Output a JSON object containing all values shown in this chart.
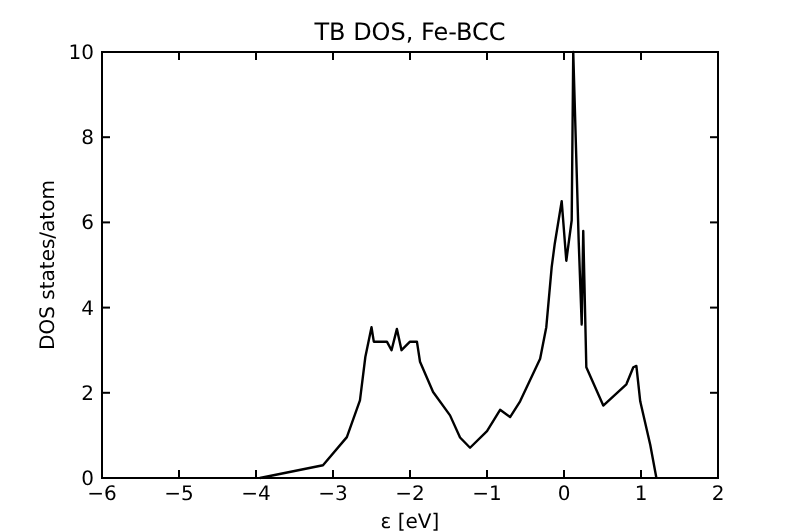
{
  "chart_data": {
    "type": "line",
    "title": "TB DOS, Fe-BCC",
    "xlabel": "ε [eV]",
    "ylabel": "DOS states/atom",
    "xlim": [
      -6,
      2
    ],
    "ylim": [
      0,
      10
    ],
    "xticks": [
      -6,
      -5,
      -4,
      -3,
      -2,
      -1,
      0,
      1,
      2
    ],
    "yticks": [
      0,
      2,
      4,
      6,
      8,
      10
    ],
    "grid": false,
    "series": [
      {
        "color": "#000000",
        "x": [
          -3.95,
          -3.13,
          -2.82,
          -2.65,
          -2.58,
          -2.5,
          -2.47,
          -2.3,
          -2.24,
          -2.17,
          -2.11,
          -2.0,
          -1.91,
          -1.87,
          -1.7,
          -1.48,
          -1.35,
          -1.22,
          -1.0,
          -0.83,
          -0.7,
          -0.57,
          -0.31,
          -0.23,
          -0.16,
          -0.12,
          -0.03,
          0.03,
          0.1,
          0.12,
          0.19,
          0.23,
          0.25,
          0.29,
          0.51,
          0.81,
          0.9,
          0.94,
          0.99,
          1.12,
          1.2
        ],
        "values": [
          0,
          0.3,
          0.96,
          1.82,
          2.84,
          3.54,
          3.2,
          3.2,
          3.0,
          3.5,
          3.0,
          3.2,
          3.2,
          2.73,
          2.02,
          1.47,
          0.95,
          0.71,
          1.1,
          1.6,
          1.43,
          1.8,
          2.8,
          3.54,
          4.95,
          5.5,
          6.5,
          5.1,
          6.05,
          10,
          5.6,
          3.6,
          5.8,
          2.6,
          1.7,
          2.2,
          2.6,
          2.63,
          1.8,
          0.78,
          0
        ]
      }
    ]
  }
}
